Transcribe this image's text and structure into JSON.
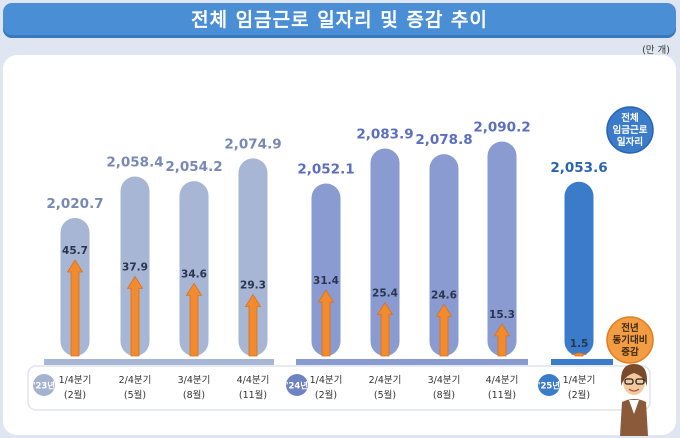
{
  "title": "전체 임금근로 일자리 및 증감 추이",
  "unit": "(만 개)",
  "callouts": {
    "total": [
      "전체",
      "임금근로",
      "일자리"
    ],
    "change": [
      "전년",
      "동기대비",
      "증감"
    ]
  },
  "colors": {
    "bar_2023": "#a6b6d4",
    "bar_2024": "#8a9bd2",
    "bar_2025": "#3a7cc9",
    "arrow": "#f28a2e",
    "label_2023": "#7789b4",
    "label_2024": "#5b6fbf",
    "label_2025": "#2b63b2",
    "badge_2023": "#a4b2d0",
    "badge_2024": "#6f82c4",
    "badge_2025": "#3a7cc9"
  },
  "chart_data": {
    "type": "bar",
    "title": "전체 임금근로 일자리 및 증감 추이",
    "unit": "만 개",
    "years": [
      {
        "label": "'23년",
        "color_key": "2023"
      },
      {
        "label": "'24년",
        "color_key": "2024"
      },
      {
        "label": "'25년",
        "color_key": "2025"
      }
    ],
    "categories": [
      {
        "year": "'23년",
        "quarter": "1/4분기",
        "month": "(2월)"
      },
      {
        "year": "'23년",
        "quarter": "2/4분기",
        "month": "(5월)"
      },
      {
        "year": "'23년",
        "quarter": "3/4분기",
        "month": "(8월)"
      },
      {
        "year": "'23년",
        "quarter": "4/4분기",
        "month": "(11월)"
      },
      {
        "year": "'24년",
        "quarter": "1/4분기",
        "month": "(2월)"
      },
      {
        "year": "'24년",
        "quarter": "2/4분기",
        "month": "(5월)"
      },
      {
        "year": "'24년",
        "quarter": "3/4분기",
        "month": "(8월)"
      },
      {
        "year": "'24년",
        "quarter": "4/4분기",
        "month": "(11월)"
      },
      {
        "year": "'25년",
        "quarter": "1/4분기",
        "month": "(2월)"
      }
    ],
    "series": [
      {
        "name": "전체 임금근로 일자리",
        "values": [
          2020.7,
          2058.4,
          2054.2,
          2074.9,
          2052.1,
          2083.9,
          2078.8,
          2090.2,
          2053.6
        ],
        "labels": [
          "2,020.7",
          "2,058.4",
          "2,054.2",
          "2,074.9",
          "2,052.1",
          "2,083.9",
          "2,078.8",
          "2,090.2",
          "2,053.6"
        ]
      },
      {
        "name": "전년 동기대비 증감",
        "values": [
          45.7,
          37.9,
          34.6,
          29.3,
          31.4,
          25.4,
          24.6,
          15.3,
          1.5
        ],
        "labels": [
          "45.7",
          "37.9",
          "34.6",
          "29.3",
          "31.4",
          "25.4",
          "24.6",
          "15.3",
          "1.5"
        ]
      }
    ],
    "grid": false
  }
}
